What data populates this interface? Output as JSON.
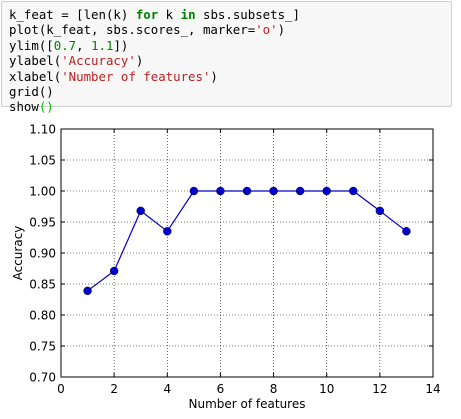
{
  "code_cell": {
    "lines": [
      [
        {
          "t": "k_feat = [len(k) "
        },
        {
          "t": "for",
          "c": "kw"
        },
        {
          "t": " k "
        },
        {
          "t": "in",
          "c": "kw"
        },
        {
          "t": " sbs.subsets_]"
        }
      ],
      [
        {
          "t": "plot(k_feat, sbs.scores_, marker="
        },
        {
          "t": "'o'",
          "c": "str"
        },
        {
          "t": ")"
        }
      ],
      [
        {
          "t": "ylim(["
        },
        {
          "t": "0.7",
          "c": "num"
        },
        {
          "t": ", "
        },
        {
          "t": "1.1",
          "c": "num"
        },
        {
          "t": "])"
        }
      ],
      [
        {
          "t": "ylabel("
        },
        {
          "t": "'Accuracy'",
          "c": "str"
        },
        {
          "t": ")"
        }
      ],
      [
        {
          "t": "xlabel("
        },
        {
          "t": "'Number of features'",
          "c": "str"
        },
        {
          "t": ")"
        }
      ],
      [
        {
          "t": "grid()"
        }
      ],
      [
        {
          "t": "show"
        },
        {
          "t": "()",
          "c": "paren-g"
        }
      ]
    ]
  },
  "chart_data": {
    "type": "line",
    "xlabel": "Number of features",
    "ylabel": "Accuracy",
    "xlim": [
      0,
      14
    ],
    "ylim": [
      0.7,
      1.1
    ],
    "xticks": [
      "0",
      "2",
      "4",
      "6",
      "8",
      "10",
      "12",
      "14"
    ],
    "yticks": [
      "0.70",
      "0.75",
      "0.80",
      "0.85",
      "0.90",
      "0.95",
      "1.00",
      "1.05",
      "1.10"
    ],
    "grid": true,
    "marker": "o",
    "color": "#0000cc",
    "series": [
      {
        "x": [
          1,
          2,
          3,
          4,
          5,
          6,
          7,
          8,
          9,
          10,
          11,
          12,
          13
        ],
        "y": [
          0.839,
          0.871,
          0.968,
          0.935,
          1.0,
          1.0,
          1.0,
          1.0,
          1.0,
          1.0,
          1.0,
          0.968,
          0.935
        ]
      }
    ]
  }
}
